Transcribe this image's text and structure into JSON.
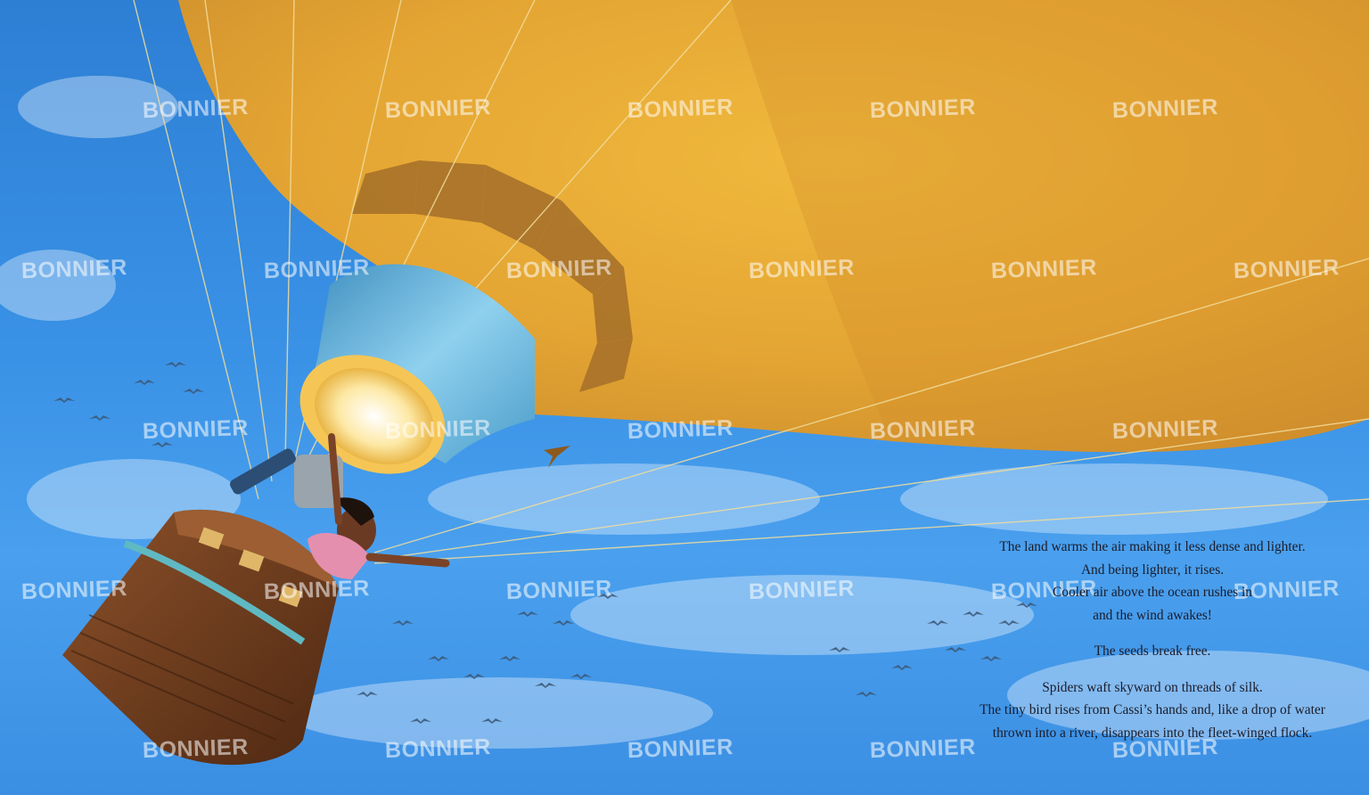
{
  "watermark": {
    "text": "BONNIER"
  },
  "story": {
    "paragraph1": [
      "The land warms the air making it less dense and lighter.",
      "And being lighter, it rises.",
      "Cooler air above the ocean rushes in",
      "and the wind awakes!"
    ],
    "paragraph2": [
      "The seeds break free."
    ],
    "paragraph3": [
      "Spiders waft skyward on threads of silk.",
      "The tiny bird rises from Cassi’s hands and, like a drop of water",
      "thrown into a river, disappears into the fleet-winged flock."
    ]
  },
  "colors": {
    "sky": "#2f86d9",
    "balloon": "#e3a834",
    "balloon_shadow": "#b5772a",
    "throat": "#6bb6dc",
    "basket": "#7a4322",
    "text": "#1c1c2a"
  }
}
